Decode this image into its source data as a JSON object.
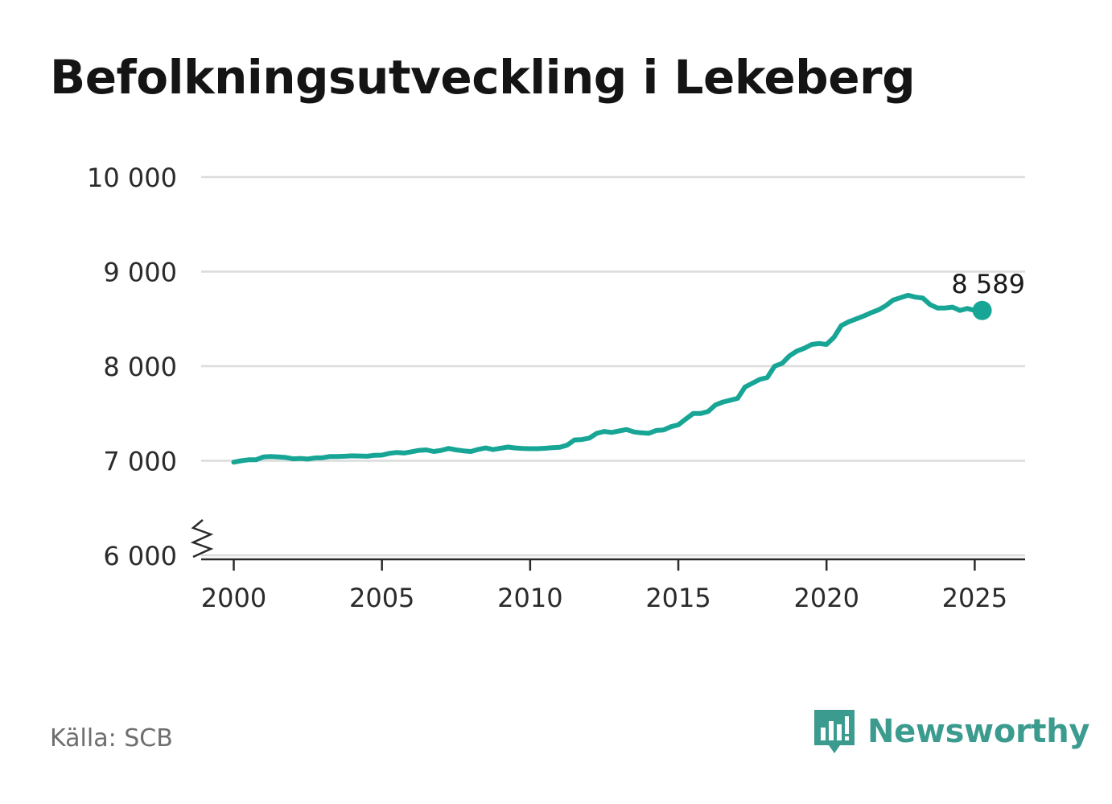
{
  "title": "Befolkningsutveckling i Lekeberg",
  "source": "Källa: SCB",
  "brand": {
    "name": "Newsworthy",
    "logo_icon": "bar-chart-speech-bubble-icon",
    "color": "#3c9b8f"
  },
  "colors": {
    "line": "#17a596",
    "grid": "#dcdcdc",
    "axis": "#2b2b2b"
  },
  "chart_data": {
    "type": "line",
    "title": "Befolkningsutveckling i Lekeberg",
    "xlabel": "",
    "ylabel": "",
    "xlim": [
      1998.9,
      2026.7
    ],
    "ylim": [
      6000,
      10000
    ],
    "y_axis_break": true,
    "grid": true,
    "x_ticks": [
      {
        "value": 2000,
        "label": "2000"
      },
      {
        "value": 2005,
        "label": "2005"
      },
      {
        "value": 2010,
        "label": "2010"
      },
      {
        "value": 2015,
        "label": "2015"
      },
      {
        "value": 2020,
        "label": "2020"
      },
      {
        "value": 2025,
        "label": "2025"
      }
    ],
    "y_ticks": [
      {
        "value": 6000,
        "label": "6 000"
      },
      {
        "value": 7000,
        "label": "7 000"
      },
      {
        "value": 8000,
        "label": "8 000"
      },
      {
        "value": 9000,
        "label": "9 000"
      },
      {
        "value": 10000,
        "label": "10 000"
      }
    ],
    "end_label": "8 589",
    "series": [
      {
        "x": [
          2000.0,
          2000.25,
          2000.5,
          2000.75,
          2001.0,
          2001.25,
          2001.5,
          2001.75,
          2002.0,
          2002.25,
          2002.5,
          2002.75,
          2003.0,
          2003.25,
          2003.5,
          2003.75,
          2004.0,
          2004.25,
          2004.5,
          2004.75,
          2005.0,
          2005.25,
          2005.5,
          2005.75,
          2006.0,
          2006.25,
          2006.5,
          2006.75,
          2007.0,
          2007.25,
          2007.5,
          2007.75,
          2008.0,
          2008.25,
          2008.5,
          2008.75,
          2009.0,
          2009.25,
          2009.5,
          2009.75,
          2010.0,
          2010.25,
          2010.5,
          2010.75,
          2011.0,
          2011.25,
          2011.5,
          2011.75,
          2012.0,
          2012.25,
          2012.5,
          2012.75,
          2013.0,
          2013.25,
          2013.5,
          2013.75,
          2014.0,
          2014.25,
          2014.5,
          2014.75,
          2015.0,
          2015.25,
          2015.5,
          2015.75,
          2016.0,
          2016.25,
          2016.5,
          2016.75,
          2017.0,
          2017.25,
          2017.5,
          2017.75,
          2018.0,
          2018.25,
          2018.5,
          2018.75,
          2019.0,
          2019.25,
          2019.5,
          2019.75,
          2020.0,
          2020.25,
          2020.5,
          2020.75,
          2021.0,
          2021.25,
          2021.5,
          2021.75,
          2022.0,
          2022.25,
          2022.5,
          2022.75,
          2023.0,
          2023.25,
          2023.5,
          2023.75,
          2024.0,
          2024.25,
          2024.5,
          2024.75,
          2025.0,
          2025.25
        ],
        "y": [
          6985,
          7000,
          7010,
          7010,
          7040,
          7045,
          7040,
          7035,
          7020,
          7025,
          7018,
          7030,
          7032,
          7045,
          7045,
          7048,
          7052,
          7050,
          7048,
          7058,
          7060,
          7078,
          7088,
          7082,
          7095,
          7110,
          7115,
          7098,
          7110,
          7130,
          7115,
          7105,
          7098,
          7120,
          7135,
          7118,
          7132,
          7145,
          7135,
          7130,
          7128,
          7128,
          7132,
          7138,
          7142,
          7165,
          7220,
          7225,
          7240,
          7290,
          7310,
          7300,
          7315,
          7330,
          7305,
          7295,
          7290,
          7320,
          7325,
          7360,
          7380,
          7440,
          7500,
          7500,
          7520,
          7590,
          7620,
          7640,
          7660,
          7780,
          7820,
          7860,
          7880,
          8000,
          8030,
          8110,
          8160,
          8190,
          8230,
          8240,
          8230,
          8305,
          8430,
          8470,
          8500,
          8530,
          8565,
          8595,
          8640,
          8700,
          8725,
          8750,
          8730,
          8720,
          8650,
          8615,
          8615,
          8625,
          8590,
          8610,
          8590,
          8589
        ]
      }
    ]
  }
}
